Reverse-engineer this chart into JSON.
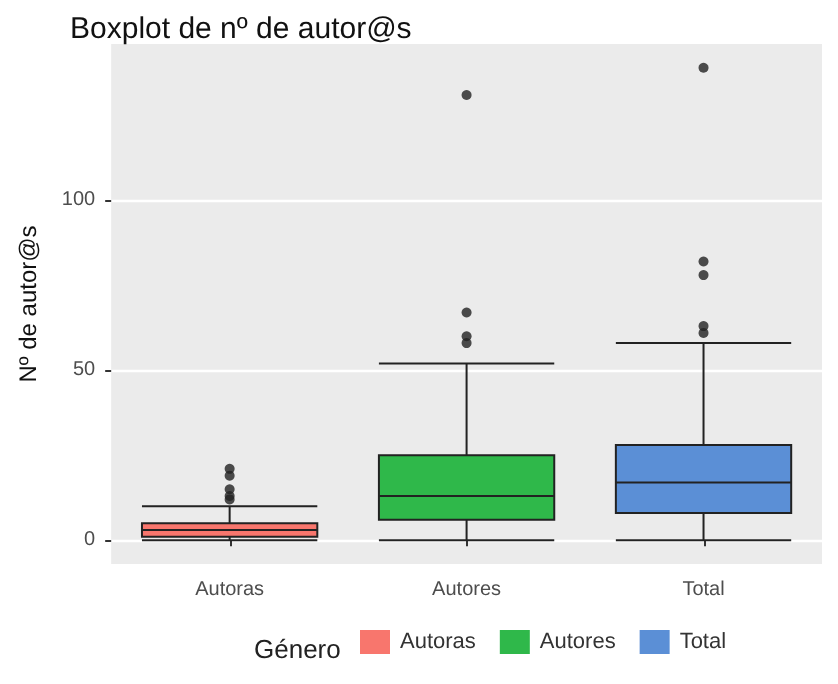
{
  "chart_data": {
    "type": "box",
    "title": "Boxplot de nº de autor@s",
    "ylabel": "Nº de autor@s",
    "legend_title": "Género",
    "categories": [
      "Autoras",
      "Autores",
      "Total"
    ],
    "series": [
      {
        "name": "Autoras",
        "color": "#f8766d",
        "boxes": [
          {
            "low": 0,
            "q1": 1,
            "median": 3,
            "q3": 5,
            "high": 10,
            "outliers": [
              21,
              19,
              15,
              13,
              12
            ]
          },
          null,
          null
        ]
      },
      {
        "name": "Autores",
        "color": "#2fb84a",
        "boxes": [
          null,
          {
            "low": 0,
            "q1": 6,
            "median": 13,
            "q3": 25,
            "high": 52,
            "outliers": [
              131,
              67,
              60,
              58
            ]
          },
          null
        ]
      },
      {
        "name": "Total",
        "color": "#5b8fd6",
        "boxes": [
          null,
          null,
          {
            "low": 0,
            "q1": 8,
            "median": 17,
            "q3": 28,
            "high": 58,
            "outliers": [
              139,
              82,
              78,
              63,
              61
            ]
          }
        ]
      }
    ],
    "ylim": [
      -7,
      146
    ],
    "yticks": [
      0,
      50,
      100
    ],
    "grid": true,
    "legend": "bottom"
  }
}
